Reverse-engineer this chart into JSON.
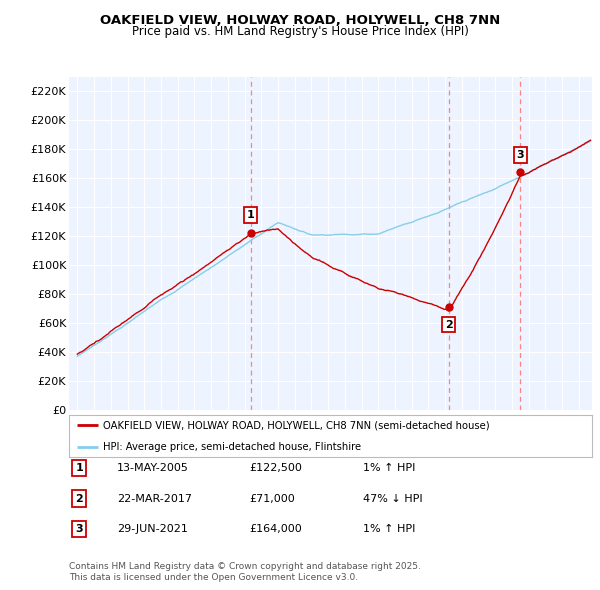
{
  "title_line1": "OAKFIELD VIEW, HOLWAY ROAD, HOLYWELL, CH8 7NN",
  "title_line2": "Price paid vs. HM Land Registry's House Price Index (HPI)",
  "ylabel_ticks": [
    "£0",
    "£20K",
    "£40K",
    "£60K",
    "£80K",
    "£100K",
    "£120K",
    "£140K",
    "£160K",
    "£180K",
    "£200K",
    "£220K"
  ],
  "ytick_values": [
    0,
    20000,
    40000,
    60000,
    80000,
    100000,
    120000,
    140000,
    160000,
    180000,
    200000,
    220000
  ],
  "ylim": [
    0,
    230000
  ],
  "xlim_start": 1994.5,
  "xlim_end": 2025.8,
  "xticks": [
    1995,
    1996,
    1997,
    1998,
    1999,
    2000,
    2001,
    2002,
    2003,
    2004,
    2005,
    2006,
    2007,
    2008,
    2009,
    2010,
    2011,
    2012,
    2013,
    2014,
    2015,
    2016,
    2017,
    2018,
    2019,
    2020,
    2021,
    2022,
    2023,
    2024,
    2025
  ],
  "sale_dates": [
    2005.37,
    2017.22,
    2021.49
  ],
  "sale_prices": [
    122500,
    71000,
    164000
  ],
  "sale_labels": [
    "1",
    "2",
    "3"
  ],
  "hpi_color": "#87CEEB",
  "price_color": "#CC0000",
  "vline_color": "#FF7777",
  "background_color": "#EEF4FF",
  "legend_sale": "OAKFIELD VIEW, HOLWAY ROAD, HOLYWELL, CH8 7NN (semi-detached house)",
  "legend_hpi": "HPI: Average price, semi-detached house, Flintshire",
  "table_rows": [
    [
      "1",
      "13-MAY-2005",
      "£122,500",
      "1% ↑ HPI"
    ],
    [
      "2",
      "22-MAR-2017",
      "£71,000",
      "47% ↓ HPI"
    ],
    [
      "3",
      "29-JUN-2021",
      "£164,000",
      "1% ↑ HPI"
    ]
  ],
  "footnote": "Contains HM Land Registry data © Crown copyright and database right 2025.\nThis data is licensed under the Open Government Licence v3.0."
}
